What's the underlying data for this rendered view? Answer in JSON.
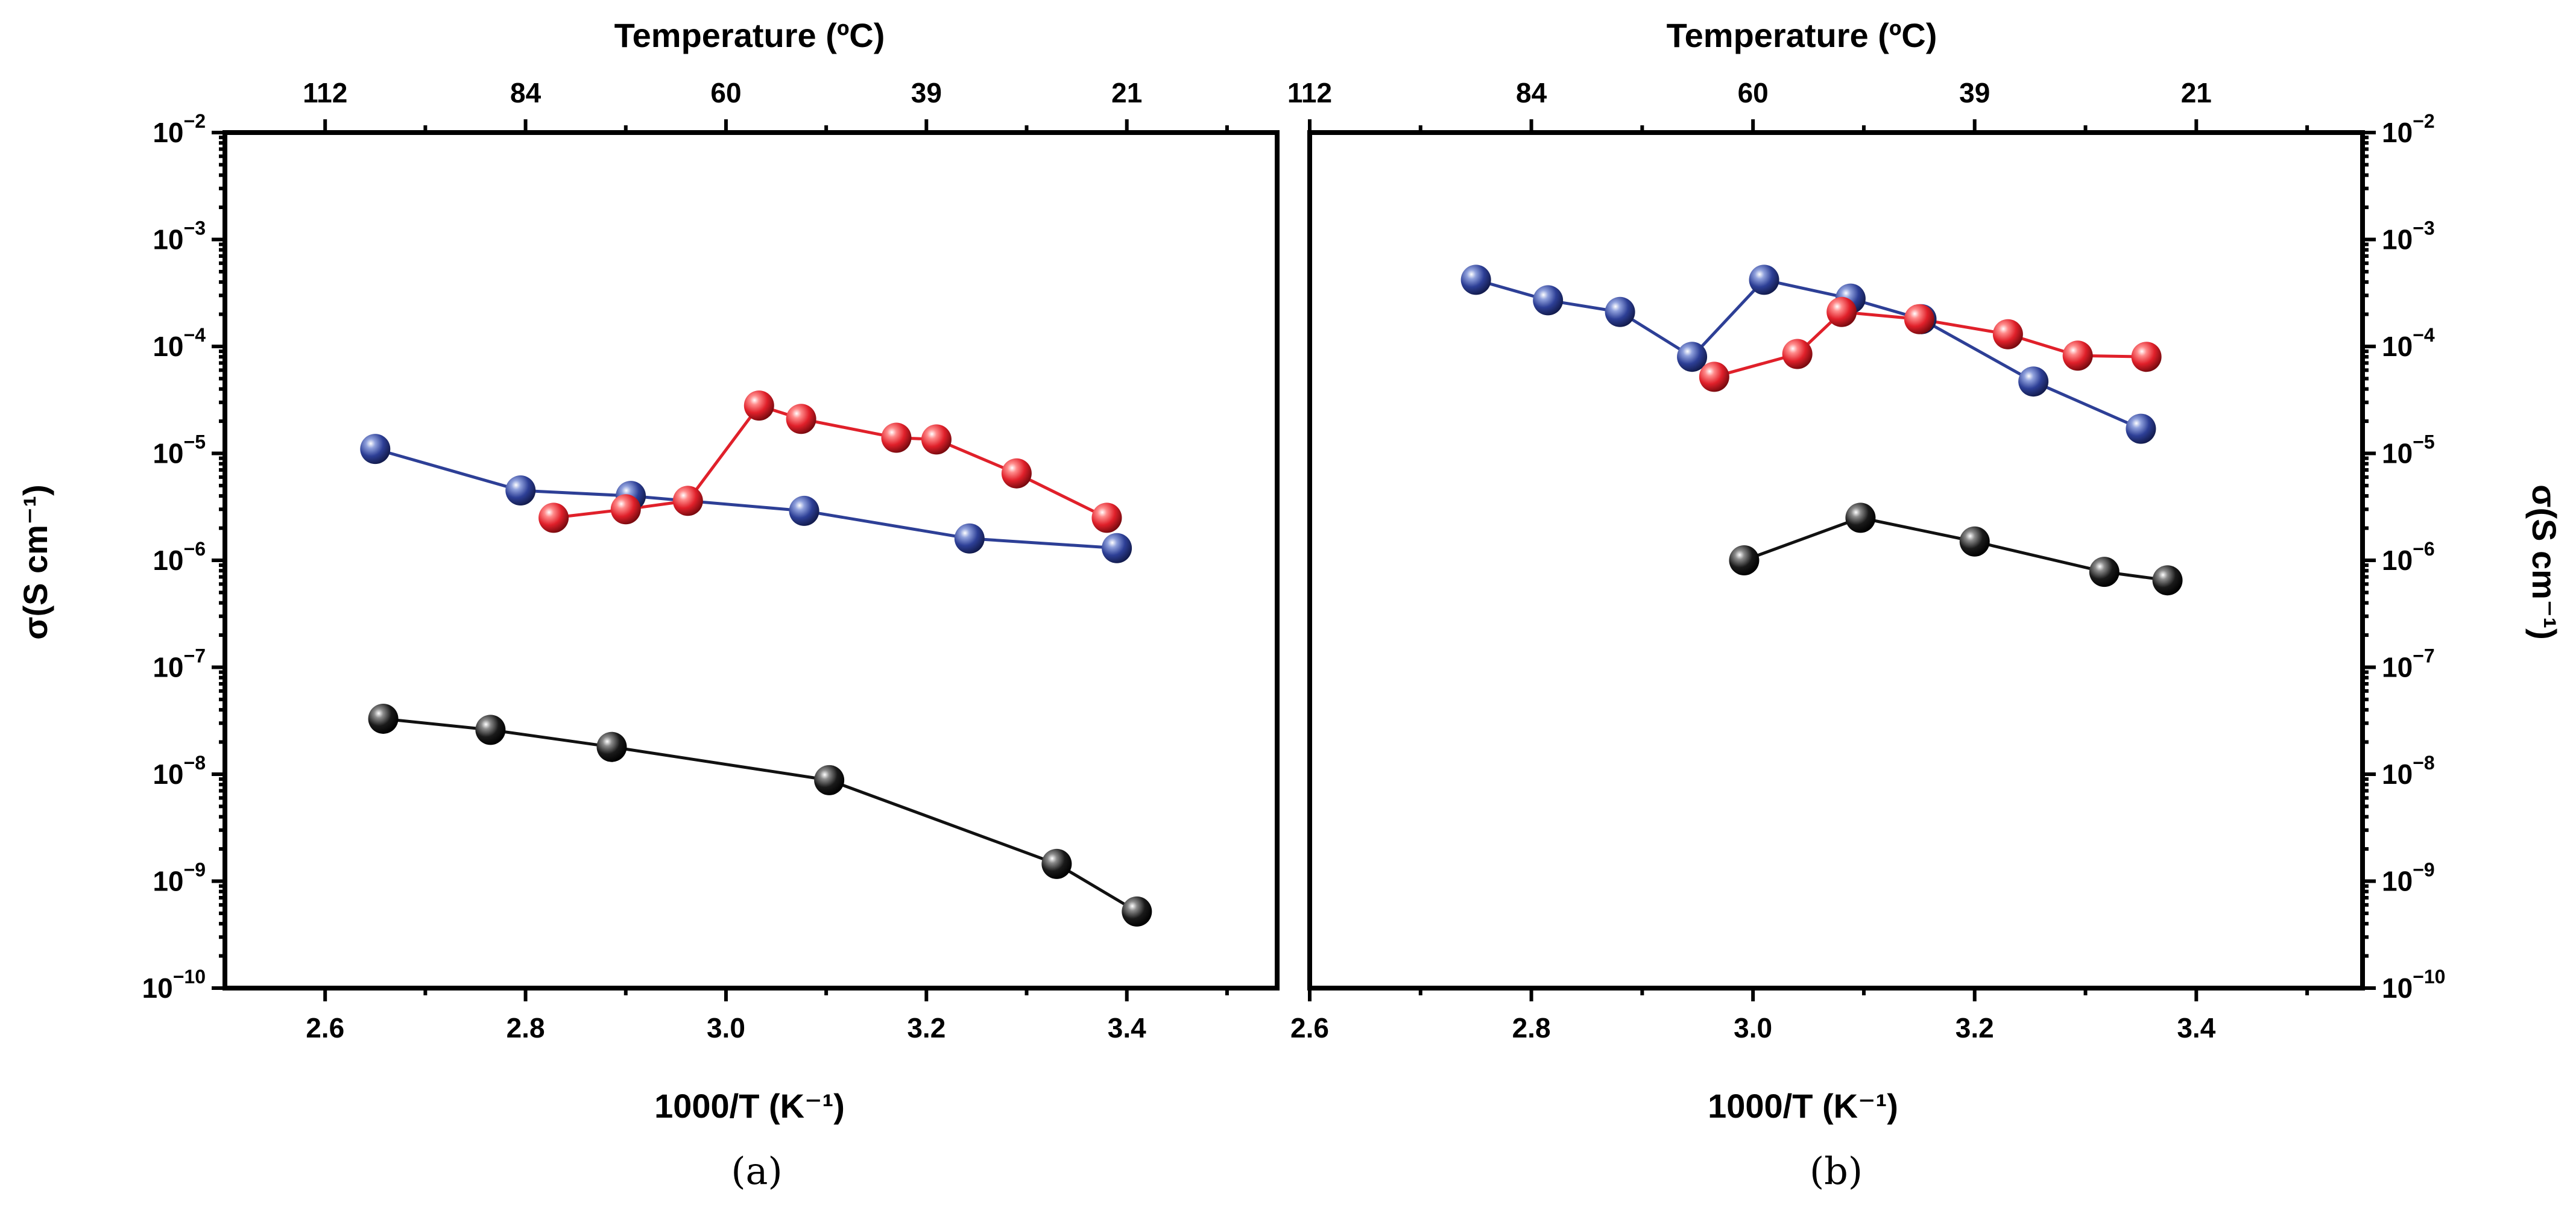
{
  "colors": {
    "blue": "#2d3f96",
    "red": "#e0202a",
    "black": "#111111"
  },
  "chart_data": [
    {
      "type": "scatter",
      "panel_label": "(a)",
      "xlabel": "1000/T (K⁻¹)",
      "ylabel": "σ(S cm⁻¹)",
      "top_axis_label": "Temperature (ºC)",
      "ylog": true,
      "xlim": [
        2.5,
        3.55
      ],
      "ylim": [
        1e-10,
        0.01
      ],
      "x_ticks": [
        {
          "value": 2.6,
          "label": "2.6"
        },
        {
          "value": 2.8,
          "label": "2.8"
        },
        {
          "value": 3.0,
          "label": "3.0"
        },
        {
          "value": 3.2,
          "label": "3.2"
        },
        {
          "value": 3.4,
          "label": "3.4"
        }
      ],
      "x_minor_ticks": [
        2.7,
        2.9,
        3.1,
        3.3,
        3.5
      ],
      "top_ticks": [
        {
          "value": 2.6,
          "label": "112"
        },
        {
          "value": 2.8,
          "label": "84"
        },
        {
          "value": 3.0,
          "label": "60"
        },
        {
          "value": 3.2,
          "label": "39"
        },
        {
          "value": 3.4,
          "label": "21"
        }
      ],
      "top_minor_ticks": [
        2.7,
        2.9,
        3.1,
        3.3,
        3.5
      ],
      "y_ticks": [
        {
          "value": 1e-10,
          "base": "10",
          "exp": "−10"
        },
        {
          "value": 1e-09,
          "base": "10",
          "exp": "−9"
        },
        {
          "value": 1e-08,
          "base": "10",
          "exp": "−8"
        },
        {
          "value": 1e-07,
          "base": "10",
          "exp": "−7"
        },
        {
          "value": 1e-06,
          "base": "10",
          "exp": "−6"
        },
        {
          "value": 1e-05,
          "base": "10",
          "exp": "−5"
        },
        {
          "value": 0.0001,
          "base": "10",
          "exp": "−4"
        },
        {
          "value": 0.001,
          "base": "10",
          "exp": "−3"
        },
        {
          "value": 0.01,
          "base": "10",
          "exp": "−2"
        }
      ],
      "series": [
        {
          "color": "#2d3f96",
          "x": [
            2.65,
            2.795,
            2.905,
            3.078,
            3.243,
            3.39
          ],
          "y": [
            1.1e-05,
            4.5e-06,
            4e-06,
            2.9e-06,
            1.6e-06,
            1.3e-06
          ]
        },
        {
          "color": "#e0202a",
          "x": [
            2.828,
            2.9,
            2.962,
            3.033,
            3.075,
            3.17,
            3.21,
            3.29,
            3.38
          ],
          "y": [
            2.5e-06,
            3e-06,
            3.6e-06,
            2.8e-05,
            2.1e-05,
            1.4e-05,
            1.35e-05,
            6.5e-06,
            2.5e-06
          ]
        },
        {
          "color": "#111111",
          "x": [
            2.658,
            2.765,
            2.886,
            3.103,
            3.33,
            3.41
          ],
          "y": [
            3.3e-08,
            2.6e-08,
            1.8e-08,
            8.8e-09,
            1.45e-09,
            5.2e-10
          ]
        }
      ]
    },
    {
      "type": "scatter",
      "panel_label": "(b)",
      "xlabel": "1000/T (K⁻¹)",
      "ylabel": "σ(S cm⁻¹)",
      "top_axis_label": "Temperature (ºC)",
      "ylog": true,
      "xlim": [
        2.6,
        3.55
      ],
      "ylim": [
        1e-10,
        0.01
      ],
      "x_ticks": [
        {
          "value": 2.6,
          "label": "2.6"
        },
        {
          "value": 2.8,
          "label": "2.8"
        },
        {
          "value": 3.0,
          "label": "3.0"
        },
        {
          "value": 3.2,
          "label": "3.2"
        },
        {
          "value": 3.4,
          "label": "3.4"
        }
      ],
      "x_minor_ticks": [
        2.7,
        2.9,
        3.1,
        3.3,
        3.5
      ],
      "top_ticks": [
        {
          "value": 2.6,
          "label": "112"
        },
        {
          "value": 2.8,
          "label": "84"
        },
        {
          "value": 3.0,
          "label": "60"
        },
        {
          "value": 3.2,
          "label": "39"
        },
        {
          "value": 3.4,
          "label": "21"
        }
      ],
      "top_minor_ticks": [
        2.7,
        2.9,
        3.1,
        3.3,
        3.5
      ],
      "y_ticks": [
        {
          "value": 1e-10,
          "base": "10",
          "exp": "−10"
        },
        {
          "value": 1e-09,
          "base": "10",
          "exp": "−9"
        },
        {
          "value": 1e-08,
          "base": "10",
          "exp": "−8"
        },
        {
          "value": 1e-07,
          "base": "10",
          "exp": "−7"
        },
        {
          "value": 1e-06,
          "base": "10",
          "exp": "−6"
        },
        {
          "value": 1e-05,
          "base": "10",
          "exp": "−5"
        },
        {
          "value": 0.0001,
          "base": "10",
          "exp": "−4"
        },
        {
          "value": 0.001,
          "base": "10",
          "exp": "−3"
        },
        {
          "value": 0.01,
          "base": "10",
          "exp": "−2"
        }
      ],
      "series": [
        {
          "color": "#2d3f96",
          "x": [
            2.75,
            2.815,
            2.88,
            2.945,
            3.01,
            3.088,
            3.152,
            3.253,
            3.35
          ],
          "y": [
            0.00042,
            0.00027,
            0.00021,
            8e-05,
            0.00042,
            0.00028,
            0.00018,
            4.7e-05,
            1.7e-05
          ]
        },
        {
          "color": "#e0202a",
          "x": [
            2.965,
            3.04,
            3.08,
            3.15,
            3.23,
            3.293,
            3.355
          ],
          "y": [
            5.2e-05,
            8.5e-05,
            0.00021,
            0.00018,
            0.00013,
            8.2e-05,
            8e-05
          ]
        },
        {
          "color": "#111111",
          "x": [
            2.992,
            3.097,
            3.2,
            3.317,
            3.374
          ],
          "y": [
            1e-06,
            2.5e-06,
            1.5e-06,
            7.8e-07,
            6.5e-07
          ]
        }
      ]
    }
  ]
}
